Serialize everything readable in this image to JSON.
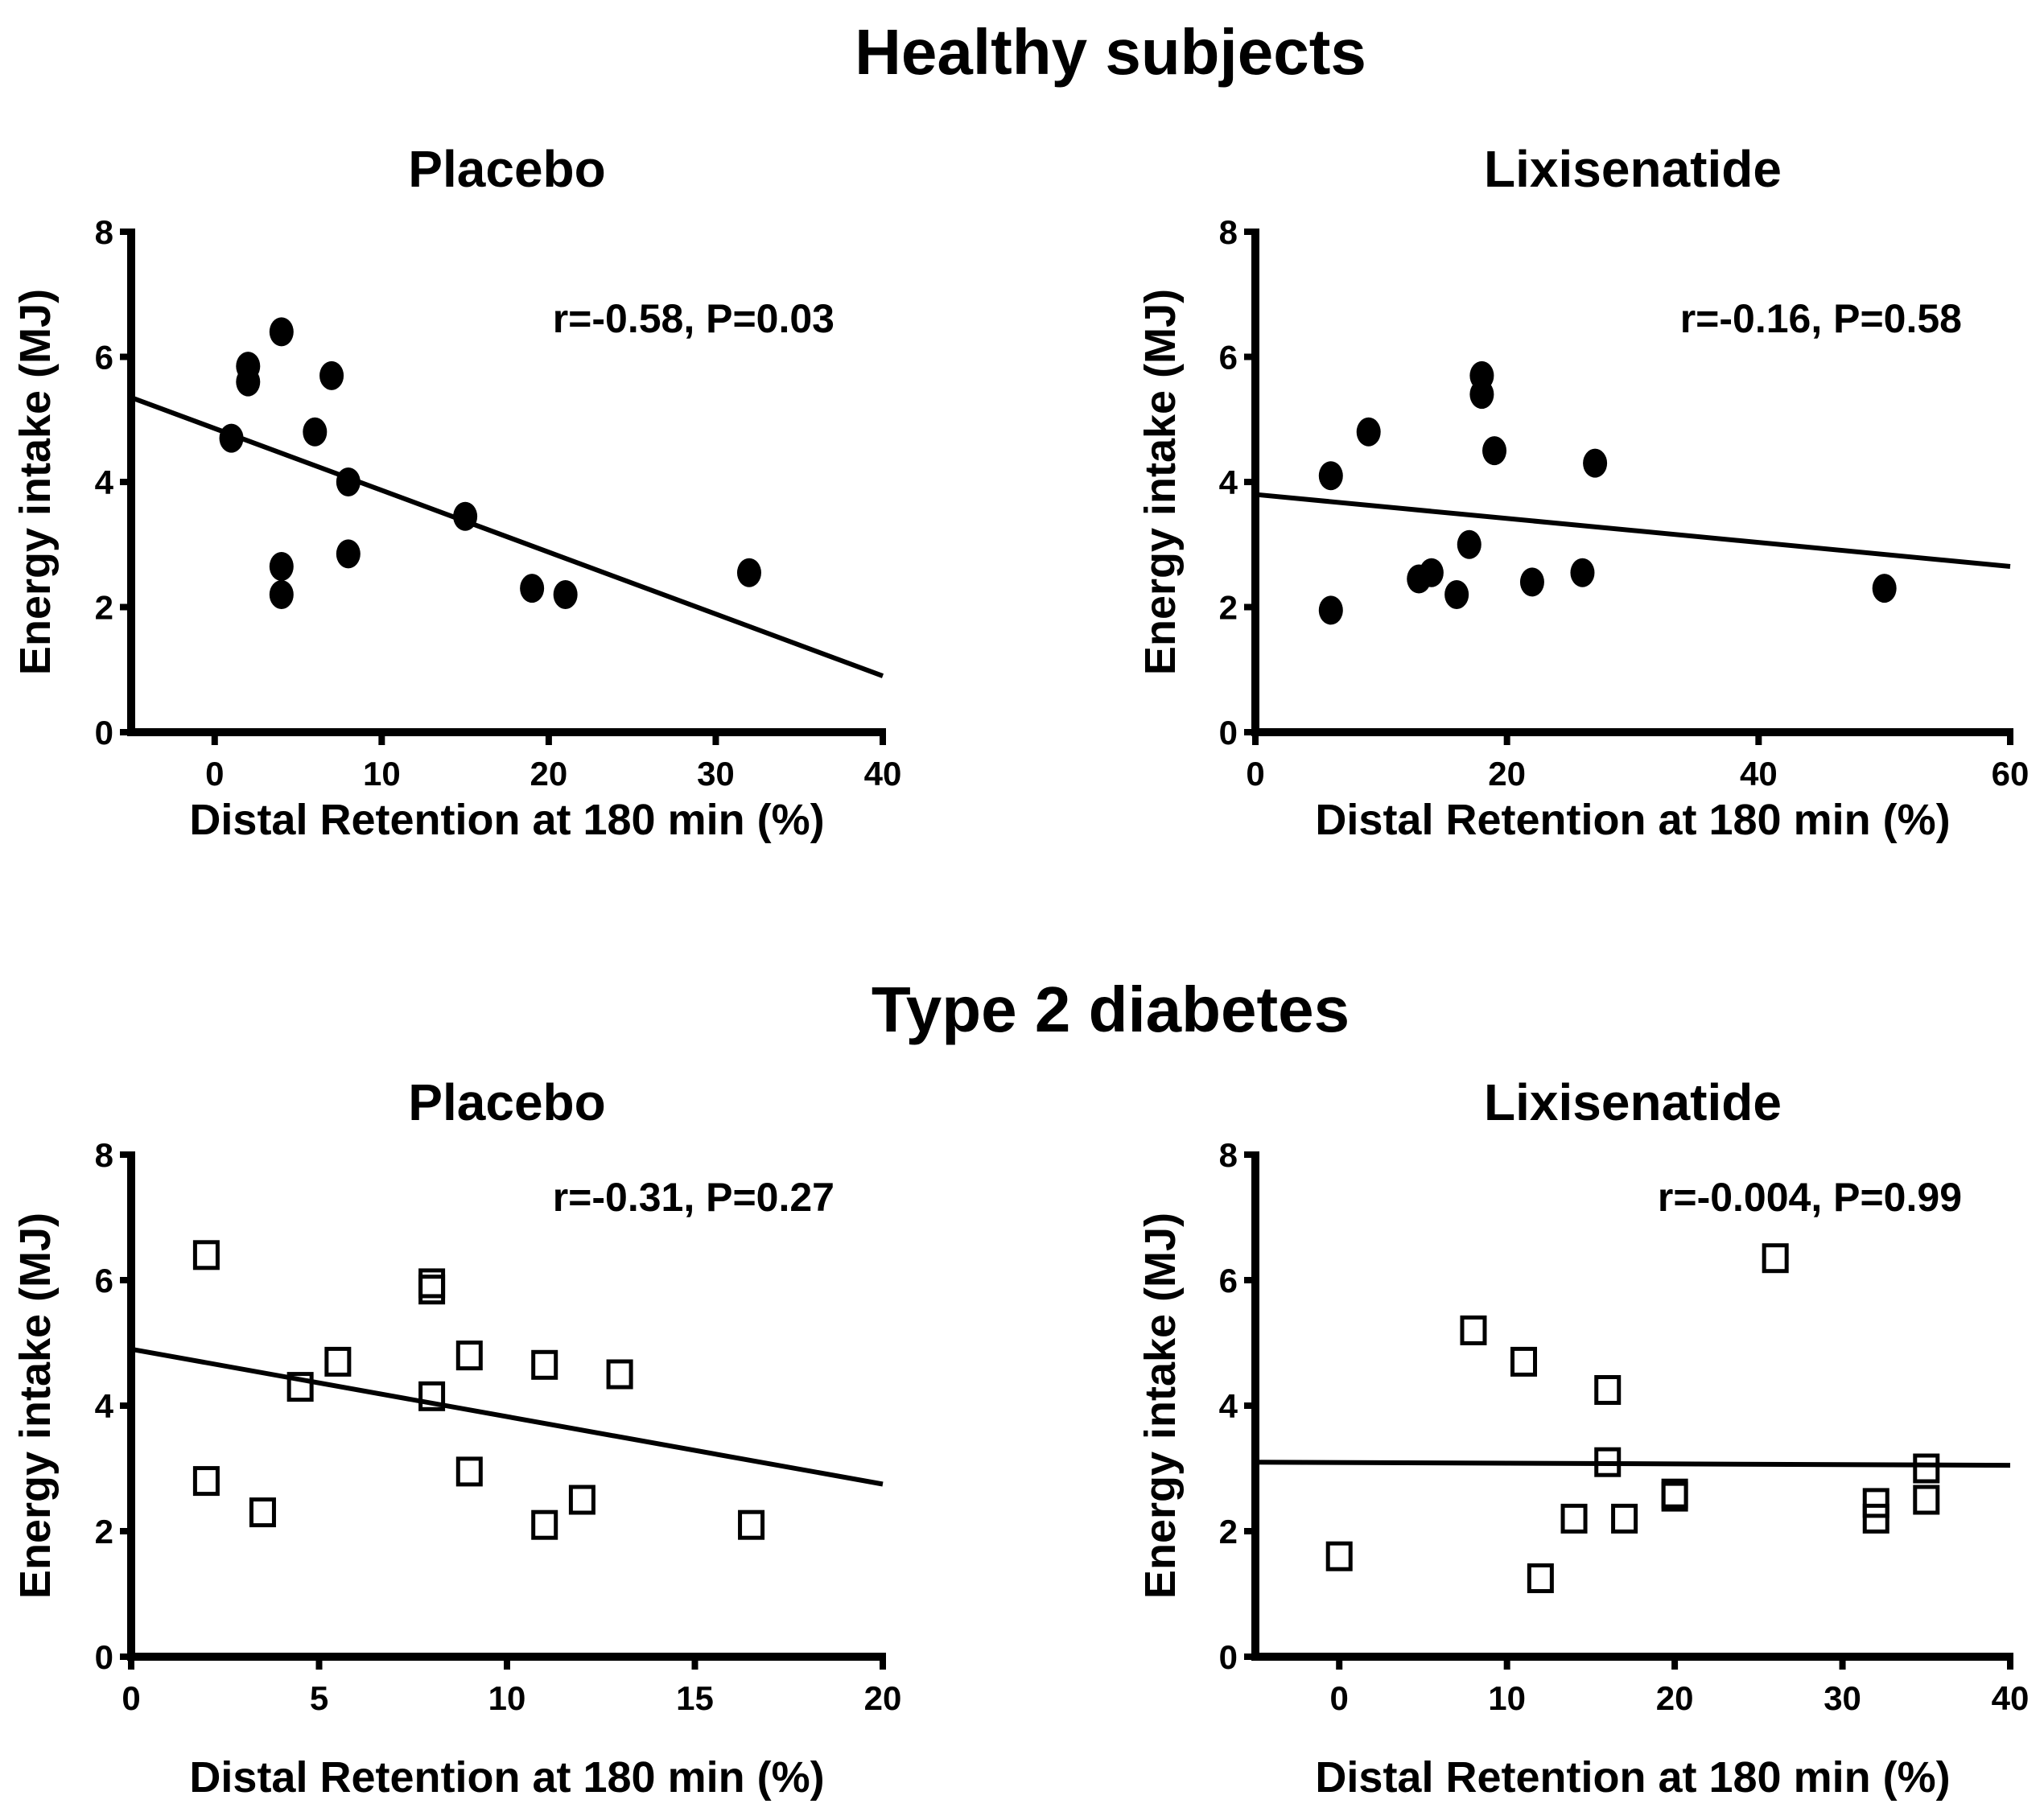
{
  "section_titles": [
    "Healthy subjects",
    "Type 2 diabetes"
  ],
  "chart_data": [
    {
      "type": "scatter",
      "group": "Healthy subjects",
      "title": "Placebo",
      "xlabel": "Distal Retention at 180 min (%)",
      "ylabel": "Energy intake (MJ)",
      "xlim": [
        -5,
        40
      ],
      "ylim": [
        0,
        8
      ],
      "xticks": [
        0,
        10,
        20,
        30,
        40
      ],
      "yticks": [
        0,
        2,
        4,
        6,
        8
      ],
      "marker": "filled-circle",
      "annotation": "r=-0.58, P=0.03",
      "points": [
        [
          1,
          4.7
        ],
        [
          2,
          5.85
        ],
        [
          2,
          5.6
        ],
        [
          4,
          6.4
        ],
        [
          7,
          5.7
        ],
        [
          6,
          4.8
        ],
        [
          8,
          4.0
        ],
        [
          15,
          3.45
        ],
        [
          4,
          2.65
        ],
        [
          4,
          2.2
        ],
        [
          8,
          2.85
        ],
        [
          19,
          2.3
        ],
        [
          21,
          2.2
        ],
        [
          32,
          2.55
        ]
      ],
      "fit_line": [
        [
          -5,
          5.35
        ],
        [
          40,
          0.9
        ]
      ]
    },
    {
      "type": "scatter",
      "group": "Healthy subjects",
      "title": "Lixisenatide",
      "xlabel": "Distal Retention at 180 min (%)",
      "ylabel": "Energy intake (MJ)",
      "xlim": [
        0,
        60
      ],
      "ylim": [
        0,
        8
      ],
      "xticks": [
        0,
        20,
        40,
        60
      ],
      "yticks": [
        0,
        2,
        4,
        6,
        8
      ],
      "marker": "filled-circle",
      "annotation": "r=-0.16, P=0.58",
      "points": [
        [
          6,
          4.1
        ],
        [
          9,
          4.8
        ],
        [
          18,
          5.7
        ],
        [
          18,
          5.4
        ],
        [
          19,
          4.5
        ],
        [
          27,
          4.3
        ],
        [
          17,
          3.0
        ],
        [
          13,
          2.45
        ],
        [
          14,
          2.55
        ],
        [
          16,
          2.2
        ],
        [
          22,
          2.4
        ],
        [
          26,
          2.55
        ],
        [
          6,
          1.95
        ],
        [
          50,
          2.3
        ]
      ],
      "fit_line": [
        [
          0,
          3.8
        ],
        [
          60,
          2.65
        ]
      ]
    },
    {
      "type": "scatter",
      "group": "Type 2 diabetes",
      "title": "Placebo",
      "xlabel": "Distal Retention at 180 min (%)",
      "ylabel": "Energy intake (MJ)",
      "xlim": [
        0,
        20
      ],
      "ylim": [
        0,
        8
      ],
      "xticks": [
        0,
        5,
        10,
        15,
        20
      ],
      "yticks": [
        0,
        2,
        4,
        6,
        8
      ],
      "marker": "open-square",
      "annotation": "r=-0.31, P=0.27",
      "points": [
        [
          2,
          6.4
        ],
        [
          8,
          5.95
        ],
        [
          8,
          5.85
        ],
        [
          5.5,
          4.7
        ],
        [
          4.5,
          4.3
        ],
        [
          8,
          4.15
        ],
        [
          9,
          4.8
        ],
        [
          11,
          4.65
        ],
        [
          13,
          4.5
        ],
        [
          2,
          2.8
        ],
        [
          3.5,
          2.3
        ],
        [
          9,
          2.95
        ],
        [
          11,
          2.1
        ],
        [
          12,
          2.5
        ],
        [
          16.5,
          2.1
        ]
      ],
      "fit_line": [
        [
          0,
          4.9
        ],
        [
          20,
          2.75
        ]
      ]
    },
    {
      "type": "scatter",
      "group": "Type 2 diabetes",
      "title": "Lixisenatide",
      "xlabel": "Distal Retention at 180 min (%)",
      "ylabel": "Energy intake (MJ)",
      "xlim": [
        -5,
        40
      ],
      "ylim": [
        0,
        8
      ],
      "xticks": [
        0,
        10,
        20,
        30,
        40
      ],
      "yticks": [
        0,
        2,
        4,
        6,
        8
      ],
      "marker": "open-square",
      "annotation": "r=-0.004, P=0.99",
      "points": [
        [
          0,
          1.6
        ],
        [
          8,
          5.2
        ],
        [
          11,
          4.7
        ],
        [
          16,
          4.25
        ],
        [
          26,
          6.35
        ],
        [
          16,
          3.1
        ],
        [
          12,
          1.25
        ],
        [
          14,
          2.2
        ],
        [
          17,
          2.2
        ],
        [
          20,
          2.55
        ],
        [
          20,
          2.6
        ],
        [
          32,
          2.45
        ],
        [
          32,
          2.2
        ],
        [
          35,
          3.0
        ],
        [
          35,
          2.5
        ]
      ],
      "fit_line": [
        [
          -5,
          3.1
        ],
        [
          40,
          3.05
        ]
      ]
    }
  ]
}
